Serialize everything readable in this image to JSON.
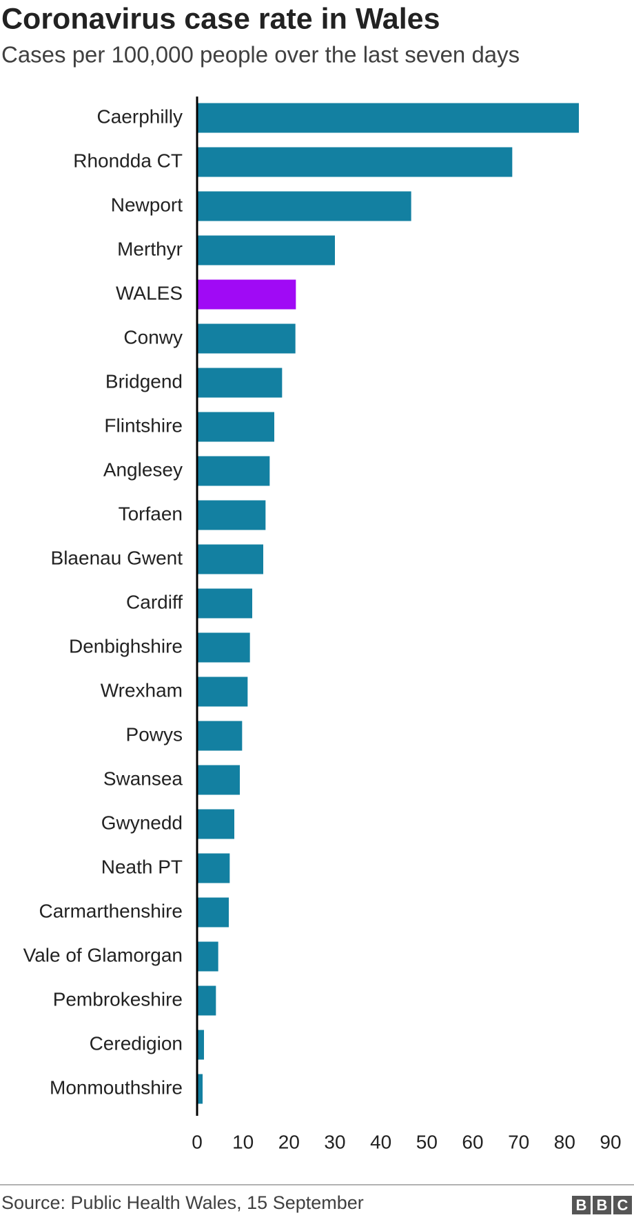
{
  "chart_data": {
    "type": "hbar",
    "title": "Coronavirus case rate in Wales",
    "subtitle": "Cases per 100,000 people over the last seven days",
    "categories": [
      "Caerphilly",
      "Rhondda CT",
      "Newport",
      "Merthyr",
      "WALES",
      "Conwy",
      "Bridgend",
      "Flintshire",
      "Anglesey",
      "Torfaen",
      "Blaenau Gwent",
      "Cardiff",
      "Denbighshire",
      "Wrexham",
      "Powys",
      "Swansea",
      "Gwynedd",
      "Neath PT",
      "Carmarthenshire",
      "Vale of Glamorgan",
      "Pembrokeshire",
      "Ceredigion",
      "Monmouthshire"
    ],
    "values": [
      83.1,
      68.6,
      46.6,
      30.0,
      21.5,
      21.4,
      18.5,
      16.8,
      15.8,
      14.9,
      14.4,
      12.0,
      11.5,
      11.0,
      9.8,
      9.3,
      8.1,
      7.1,
      6.9,
      4.6,
      4.1,
      1.5,
      1.2
    ],
    "colors": [
      "#1380a1",
      "#1380a1",
      "#1380a1",
      "#1380a1",
      "#a00af5",
      "#1380a1",
      "#1380a1",
      "#1380a1",
      "#1380a1",
      "#1380a1",
      "#1380a1",
      "#1380a1",
      "#1380a1",
      "#1380a1",
      "#1380a1",
      "#1380a1",
      "#1380a1",
      "#1380a1",
      "#1380a1",
      "#1380a1",
      "#1380a1",
      "#1380a1",
      "#1380a1"
    ],
    "xlim": [
      0,
      90
    ],
    "xticks": [
      0,
      10,
      20,
      30,
      40,
      50,
      60,
      70,
      80,
      90
    ],
    "source": "Source: Public Health Wales, 15 September",
    "logo": [
      "B",
      "B",
      "C"
    ]
  }
}
